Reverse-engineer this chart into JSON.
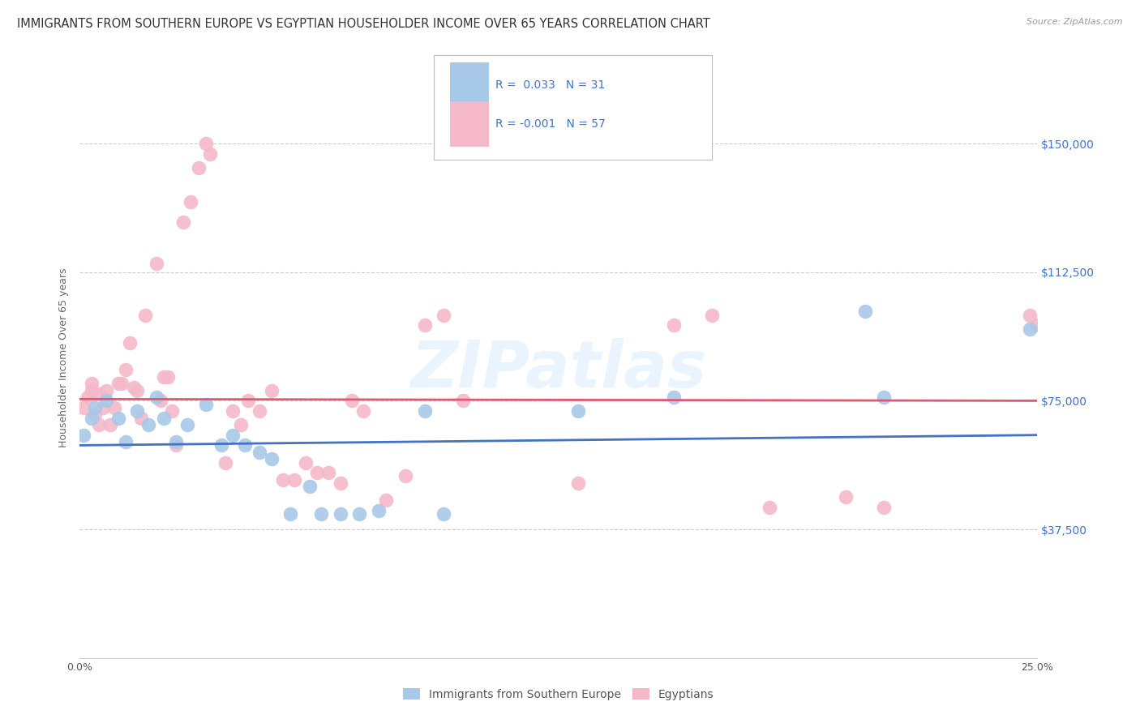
{
  "title": "IMMIGRANTS FROM SOUTHERN EUROPE VS EGYPTIAN HOUSEHOLDER INCOME OVER 65 YEARS CORRELATION CHART",
  "source": "Source: ZipAtlas.com",
  "ylabel": "Householder Income Over 65 years",
  "xlim": [
    0,
    0.25
  ],
  "ylim": [
    0,
    175000
  ],
  "xticks": [
    0.0,
    0.05,
    0.1,
    0.15,
    0.2,
    0.25
  ],
  "xticklabels": [
    "0.0%",
    "",
    "",
    "",
    "",
    "25.0%"
  ],
  "ytick_positions": [
    37500,
    75000,
    112500,
    150000
  ],
  "ytick_labels": [
    "$37,500",
    "$75,000",
    "$112,500",
    "$150,000"
  ],
  "watermark": "ZIPatlas",
  "legend_blue_r": "0.033",
  "legend_blue_n": "31",
  "legend_pink_r": "-0.001",
  "legend_pink_n": "57",
  "legend_label_blue": "Immigrants from Southern Europe",
  "legend_label_pink": "Egyptians",
  "blue_color": "#a8c8e8",
  "pink_color": "#f5b8c8",
  "blue_line_color": "#4472c4",
  "pink_line_color": "#e05878",
  "blue_scatter": [
    [
      0.001,
      65000
    ],
    [
      0.003,
      70000
    ],
    [
      0.004,
      73000
    ],
    [
      0.007,
      75000
    ],
    [
      0.01,
      70000
    ],
    [
      0.012,
      63000
    ],
    [
      0.015,
      72000
    ],
    [
      0.018,
      68000
    ],
    [
      0.02,
      76000
    ],
    [
      0.022,
      70000
    ],
    [
      0.025,
      63000
    ],
    [
      0.028,
      68000
    ],
    [
      0.033,
      74000
    ],
    [
      0.037,
      62000
    ],
    [
      0.04,
      65000
    ],
    [
      0.043,
      62000
    ],
    [
      0.047,
      60000
    ],
    [
      0.05,
      58000
    ],
    [
      0.055,
      42000
    ],
    [
      0.06,
      50000
    ],
    [
      0.063,
      42000
    ],
    [
      0.068,
      42000
    ],
    [
      0.073,
      42000
    ],
    [
      0.078,
      43000
    ],
    [
      0.09,
      72000
    ],
    [
      0.095,
      42000
    ],
    [
      0.13,
      72000
    ],
    [
      0.155,
      76000
    ],
    [
      0.205,
      101000
    ],
    [
      0.21,
      76000
    ],
    [
      0.248,
      96000
    ]
  ],
  "pink_scatter": [
    [
      0.001,
      73000
    ],
    [
      0.002,
      76000
    ],
    [
      0.003,
      78000
    ],
    [
      0.003,
      80000
    ],
    [
      0.004,
      71000
    ],
    [
      0.005,
      77000
    ],
    [
      0.005,
      68000
    ],
    [
      0.006,
      73000
    ],
    [
      0.007,
      78000
    ],
    [
      0.008,
      68000
    ],
    [
      0.009,
      73000
    ],
    [
      0.01,
      80000
    ],
    [
      0.011,
      80000
    ],
    [
      0.012,
      84000
    ],
    [
      0.013,
      92000
    ],
    [
      0.014,
      79000
    ],
    [
      0.015,
      78000
    ],
    [
      0.016,
      70000
    ],
    [
      0.017,
      100000
    ],
    [
      0.02,
      115000
    ],
    [
      0.021,
      75000
    ],
    [
      0.022,
      82000
    ],
    [
      0.023,
      82000
    ],
    [
      0.024,
      72000
    ],
    [
      0.025,
      62000
    ],
    [
      0.027,
      127000
    ],
    [
      0.029,
      133000
    ],
    [
      0.031,
      143000
    ],
    [
      0.033,
      150000
    ],
    [
      0.034,
      147000
    ],
    [
      0.038,
      57000
    ],
    [
      0.04,
      72000
    ],
    [
      0.042,
      68000
    ],
    [
      0.044,
      75000
    ],
    [
      0.047,
      72000
    ],
    [
      0.05,
      78000
    ],
    [
      0.053,
      52000
    ],
    [
      0.056,
      52000
    ],
    [
      0.059,
      57000
    ],
    [
      0.062,
      54000
    ],
    [
      0.065,
      54000
    ],
    [
      0.068,
      51000
    ],
    [
      0.071,
      75000
    ],
    [
      0.074,
      72000
    ],
    [
      0.08,
      46000
    ],
    [
      0.085,
      53000
    ],
    [
      0.09,
      97000
    ],
    [
      0.095,
      100000
    ],
    [
      0.1,
      75000
    ],
    [
      0.13,
      51000
    ],
    [
      0.155,
      97000
    ],
    [
      0.165,
      100000
    ],
    [
      0.18,
      44000
    ],
    [
      0.2,
      47000
    ],
    [
      0.21,
      44000
    ],
    [
      0.248,
      100000
    ],
    [
      0.25,
      97000
    ]
  ],
  "blue_trend_x": [
    0.0,
    0.25
  ],
  "blue_trend_y": [
    62000,
    65000
  ],
  "pink_trend_x": [
    0.0,
    0.25
  ],
  "pink_trend_y": [
    75500,
    75000
  ],
  "grid_color": "#cccccc",
  "background_color": "#ffffff",
  "title_fontsize": 10.5,
  "axis_label_fontsize": 9,
  "tick_fontsize": 9,
  "marker_size": 160
}
